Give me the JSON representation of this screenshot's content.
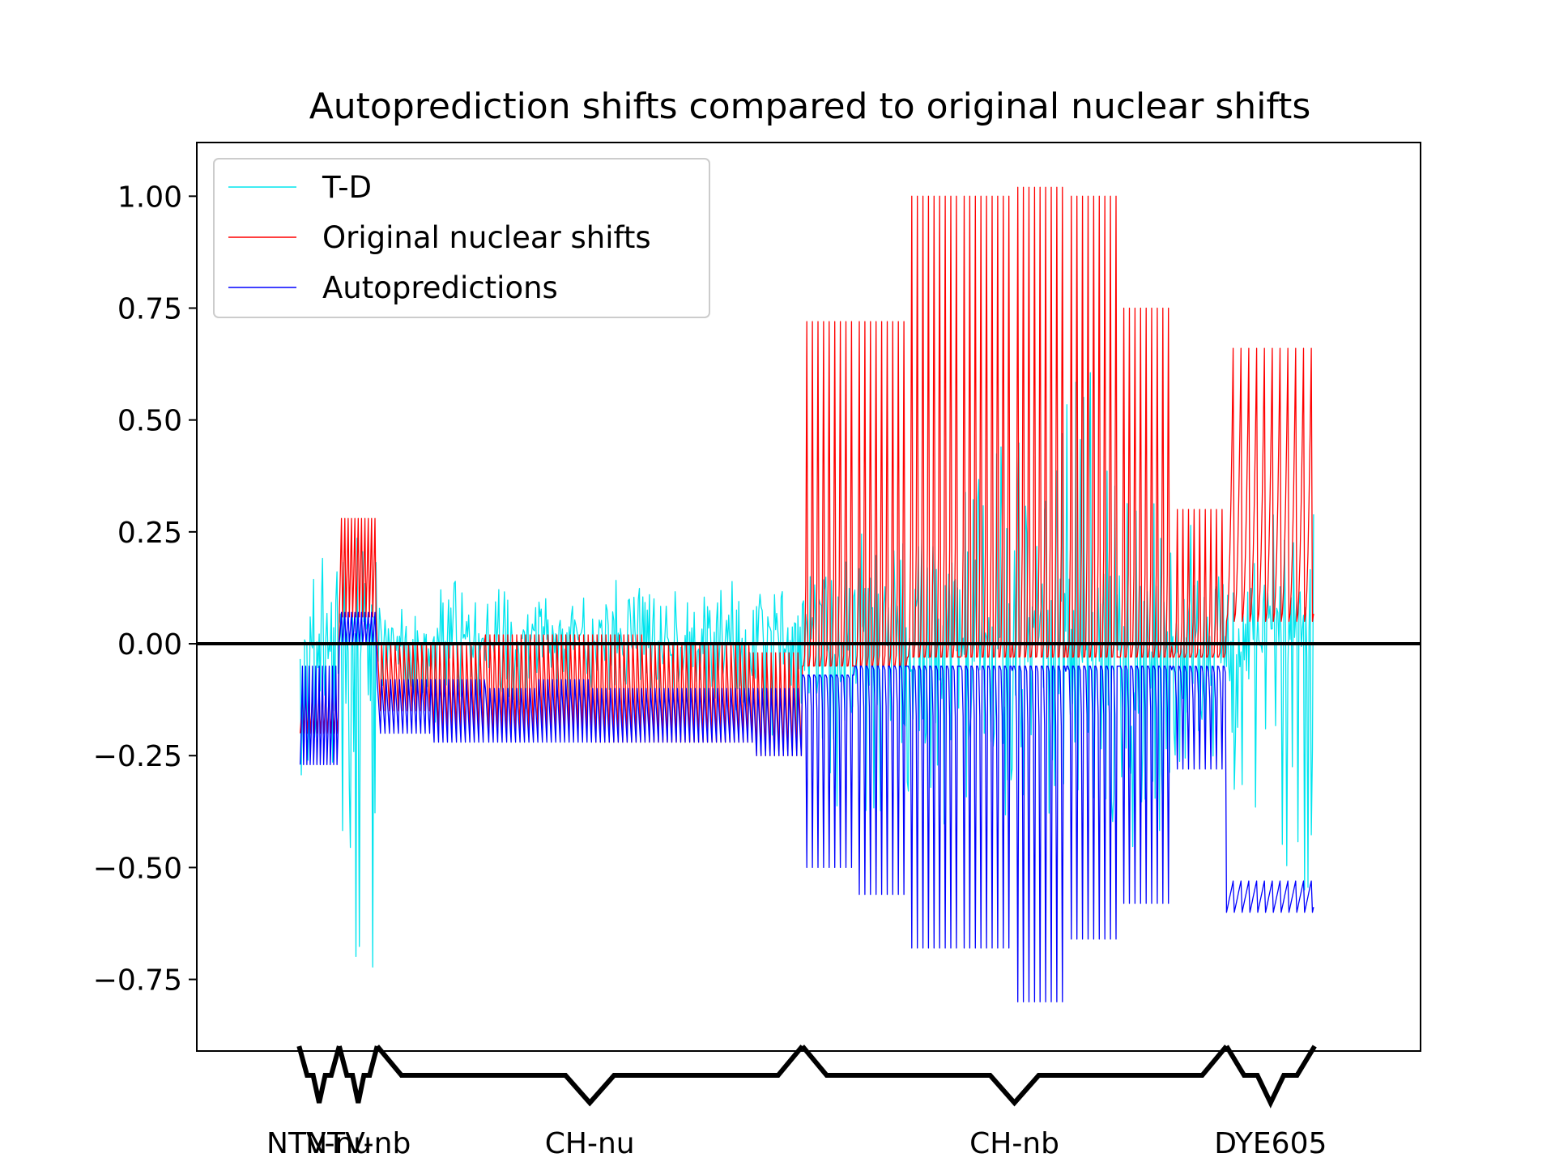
{
  "chart_data": {
    "type": "line",
    "title": "Autoprediction shifts compared to original nuclear shifts",
    "xlabel": "",
    "ylabel": "",
    "ylim": [
      -0.91,
      1.12
    ],
    "xlim": [
      0,
      1000
    ],
    "grid": false,
    "legend_position": "top-left",
    "zero_line": {
      "y": 0.0,
      "color": "#000000"
    },
    "yticks": [
      -0.75,
      -0.5,
      -0.25,
      0.0,
      0.25,
      0.5,
      0.75,
      1.0
    ],
    "ytick_labels": [
      "−0.75",
      "−0.50",
      "−0.25",
      "0.00",
      "0.25",
      "0.50",
      "0.75",
      "1.00"
    ],
    "series": [
      {
        "name": "T-D",
        "color": "#00e5ee"
      },
      {
        "name": "Original nuclear shifts",
        "color": "#ff0000"
      },
      {
        "name": "Autopredictions",
        "color": "#0000ff"
      }
    ],
    "groups": [
      {
        "label": "NTV-nu",
        "start": 43,
        "end": 79
      },
      {
        "label": "NTV-nb",
        "start": 79,
        "end": 113
      },
      {
        "label": "CH-nu",
        "start": 113,
        "end": 494
      },
      {
        "label": "CH-nb",
        "start": 494,
        "end": 874
      },
      {
        "label": "DYE605",
        "start": 874,
        "end": 953
      }
    ],
    "segments": [
      {
        "start": 44,
        "end": 79,
        "period": 3,
        "red": [
          -0.2,
          -0.1,
          1.5
        ],
        "blue": [
          -0.27,
          -0.05,
          1.5
        ],
        "td": [
          0.0,
          0.28
        ],
        "td_min": -0.3
      },
      {
        "start": 79,
        "end": 113,
        "period": 3,
        "red": [
          0.06,
          0.28,
          1.2
        ],
        "blue": [
          0.0,
          0.07,
          1.2
        ],
        "td": [
          0.06,
          0.32
        ],
        "td_min": -0.82
      },
      {
        "start": 113,
        "end": 161,
        "period": 4,
        "red": [
          0.0,
          -0.15,
          1.0
        ],
        "blue": [
          -0.08,
          -0.2,
          1.0
        ],
        "td": [
          0.05,
          0.12
        ],
        "td_min": -0.15
      },
      {
        "start": 161,
        "end": 210,
        "period": 4,
        "red": [
          0.0,
          -0.2,
          1.0
        ],
        "blue": [
          -0.08,
          -0.22,
          1.0
        ],
        "td": [
          0.02,
          0.15
        ],
        "td_min": -0.18
      },
      {
        "start": 210,
        "end": 258,
        "period": 4,
        "red": [
          0.02,
          -0.2,
          1.0
        ],
        "blue": [
          -0.1,
          -0.22,
          1.0
        ],
        "td": [
          0.04,
          0.13
        ],
        "td_min": -0.15
      },
      {
        "start": 258,
        "end": 306,
        "period": 4,
        "red": [
          0.02,
          -0.2,
          1.0
        ],
        "blue": [
          -0.08,
          -0.22,
          1.0
        ],
        "td": [
          0.04,
          0.12
        ],
        "td_min": -0.15
      },
      {
        "start": 306,
        "end": 354,
        "period": 4,
        "red": [
          0.02,
          -0.22,
          1.0
        ],
        "blue": [
          -0.1,
          -0.22,
          1.0
        ],
        "td": [
          0.06,
          0.18
        ],
        "td_min": -0.12
      },
      {
        "start": 354,
        "end": 402,
        "period": 4,
        "red": [
          0.0,
          -0.22,
          1.0
        ],
        "blue": [
          -0.1,
          -0.22,
          1.0
        ],
        "td": [
          0.05,
          0.15
        ],
        "td_min": -0.15
      },
      {
        "start": 402,
        "end": 450,
        "period": 4,
        "red": [
          0.0,
          -0.22,
          1.0
        ],
        "blue": [
          -0.1,
          -0.22,
          1.0
        ],
        "td": [
          0.07,
          0.16
        ],
        "td_min": -0.15
      },
      {
        "start": 450,
        "end": 494,
        "period": 4,
        "red": [
          -0.02,
          -0.25,
          1.0
        ],
        "blue": [
          -0.1,
          -0.25,
          1.0
        ],
        "td": [
          0.08,
          0.16
        ],
        "td_min": -0.22
      },
      {
        "start": 494,
        "end": 541,
        "period": 5,
        "red": [
          -0.05,
          0.72,
          5.0
        ],
        "blue": [
          -0.07,
          -0.5,
          6.0
        ],
        "td": [
          0.1,
          0.2
        ],
        "td_min": -0.38
      },
      {
        "start": 541,
        "end": 588,
        "period": 5,
        "red": [
          -0.05,
          0.72,
          5.0
        ],
        "blue": [
          -0.05,
          -0.56,
          6.0
        ],
        "td": [
          0.1,
          0.33
        ],
        "td_min": -0.4
      },
      {
        "start": 588,
        "end": 635,
        "period": 5,
        "red": [
          -0.03,
          1.0,
          5.0
        ],
        "blue": [
          -0.05,
          -0.68,
          6.0
        ],
        "td": [
          0.1,
          0.32
        ],
        "td_min": -0.42
      },
      {
        "start": 635,
        "end": 683,
        "period": 5,
        "red": [
          -0.03,
          1.0,
          5.0
        ],
        "blue": [
          -0.05,
          -0.68,
          6.0
        ],
        "td": [
          0.1,
          0.45
        ],
        "td_min": -0.4
      },
      {
        "start": 683,
        "end": 731,
        "period": 5,
        "red": [
          -0.03,
          1.02,
          5.0
        ],
        "blue": [
          -0.05,
          -0.8,
          6.0
        ],
        "td": [
          0.1,
          0.65
        ],
        "td_min": -0.45
      },
      {
        "start": 731,
        "end": 778,
        "period": 5,
        "red": [
          -0.03,
          1.0,
          5.0
        ],
        "blue": [
          -0.05,
          -0.66,
          6.0
        ],
        "td": [
          0.12,
          0.82
        ],
        "td_min": -0.44
      },
      {
        "start": 778,
        "end": 826,
        "period": 5,
        "red": [
          -0.03,
          0.75,
          5.0
        ],
        "blue": [
          -0.05,
          -0.58,
          6.0
        ],
        "td": [
          0.1,
          0.53
        ],
        "td_min": -0.5
      },
      {
        "start": 826,
        "end": 874,
        "period": 5,
        "red": [
          -0.03,
          0.3,
          5.0
        ],
        "blue": [
          -0.05,
          -0.28,
          4.0
        ],
        "td": [
          0.1,
          0.28
        ],
        "td_min": -0.3
      },
      {
        "start": 874,
        "end": 953,
        "period": 7,
        "red": [
          0.05,
          0.66,
          2.0
        ],
        "blue": [
          -0.6,
          -0.53,
          1.0
        ],
        "td": [
          0.1,
          0.3
        ],
        "td_min": -0.55
      }
    ]
  }
}
